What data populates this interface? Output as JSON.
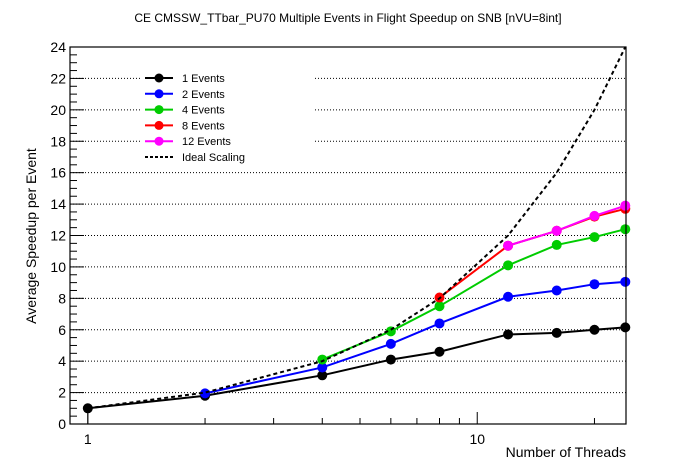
{
  "chart_data": {
    "type": "line",
    "title": "CE CMSSW_TTbar_PU70 Multiple Events in Flight Speedup on SNB [nVU=8int]",
    "xlabel": "Number of Threads",
    "ylabel": "Average Speedup per Event",
    "xscale": "log",
    "xlim": [
      0.9,
      24.1
    ],
    "ylim": [
      0,
      24
    ],
    "x_tick_labels": [
      "1",
      "10"
    ],
    "y_tick_labels": [
      "0",
      "2",
      "4",
      "6",
      "8",
      "10",
      "12",
      "14",
      "16",
      "18",
      "20",
      "22",
      "24"
    ],
    "grid": "horizontal dotted",
    "legend_position": "top-left",
    "series": [
      {
        "name": "1 Events",
        "color": "#000000",
        "x": [
          1,
          2,
          4,
          6,
          8,
          12,
          16,
          20,
          24
        ],
        "values": [
          1.0,
          1.8,
          3.1,
          4.1,
          4.6,
          5.7,
          5.8,
          6.0,
          6.15
        ]
      },
      {
        "name": "2 Events",
        "color": "#0000ff",
        "x": [
          2,
          4,
          6,
          8,
          12,
          16,
          20,
          24
        ],
        "values": [
          1.95,
          3.6,
          5.1,
          6.4,
          8.1,
          8.5,
          8.9,
          9.05
        ]
      },
      {
        "name": "4 Events",
        "color": "#00cc00",
        "x": [
          4,
          6,
          8,
          12,
          16,
          20,
          24
        ],
        "values": [
          4.1,
          5.9,
          7.5,
          10.1,
          11.4,
          11.9,
          12.4
        ]
      },
      {
        "name": "8 Events",
        "color": "#ff0000",
        "x": [
          8,
          12,
          16,
          20,
          24
        ],
        "values": [
          8.05,
          11.35,
          12.3,
          13.2,
          13.7
        ]
      },
      {
        "name": "12 Events",
        "color": "#ff00ff",
        "x": [
          12,
          16,
          20,
          24
        ],
        "values": [
          11.35,
          12.3,
          13.25,
          13.9
        ]
      },
      {
        "name": "Ideal Scaling",
        "color": "#000000",
        "style": "dashed",
        "x": [
          1,
          2,
          4,
          6,
          8,
          12,
          16,
          20,
          24
        ],
        "values": [
          1,
          2,
          4,
          6,
          8,
          12,
          16,
          20,
          24
        ]
      }
    ]
  }
}
